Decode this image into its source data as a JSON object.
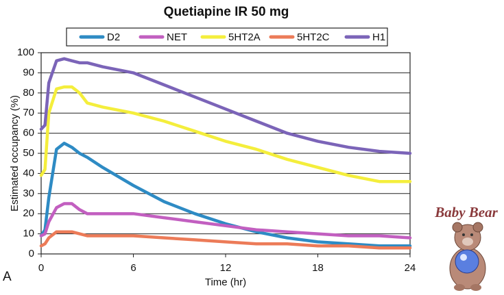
{
  "chart_data": {
    "type": "line",
    "title": "Quetiapine IR 50 mg",
    "x_label": "Time (hr)",
    "y_label": "Estimated occupancy (%)",
    "panel_label": "A",
    "badge": "Baby Bear",
    "x": [
      0,
      0.25,
      0.5,
      1,
      1.5,
      2,
      2.5,
      3,
      4,
      6,
      8,
      10,
      12,
      14,
      16,
      18,
      20,
      22,
      24
    ],
    "series": [
      {
        "name": "D2",
        "color": "#2e8bc4",
        "values": [
          9,
          12,
          28,
          52,
          55,
          53,
          50,
          48,
          43,
          34,
          26,
          20,
          15,
          11,
          8,
          6,
          5,
          4,
          4
        ]
      },
      {
        "name": "NET",
        "color": "#c25fc0",
        "values": [
          9,
          10,
          16,
          23,
          25,
          25,
          22,
          20,
          20,
          20,
          18,
          16,
          14,
          12,
          11,
          10,
          9,
          9,
          8
        ]
      },
      {
        "name": "5HT2A",
        "color": "#f4ee3c",
        "values": [
          39,
          42,
          70,
          82,
          83,
          83,
          80,
          75,
          73,
          70,
          66,
          61,
          56,
          52,
          47,
          43,
          39,
          36,
          36
        ]
      },
      {
        "name": "5HT2C",
        "color": "#ec7b58",
        "values": [
          4,
          5,
          8,
          11,
          11,
          11,
          10,
          9,
          9,
          9,
          8,
          7,
          6,
          5,
          5,
          4,
          4,
          3,
          3
        ]
      },
      {
        "name": "H1",
        "color": "#7b64b8",
        "values": [
          62,
          64,
          85,
          96,
          97,
          96,
          95,
          95,
          93,
          90,
          84,
          78,
          72,
          66,
          60,
          56,
          53,
          51,
          50
        ]
      }
    ],
    "xlim": [
      0,
      24
    ],
    "xticks": [
      0,
      6,
      12,
      18,
      24
    ],
    "ylim": [
      0,
      100
    ],
    "yticks": [
      0,
      10,
      20,
      30,
      40,
      50,
      60,
      70,
      80,
      90,
      100
    ],
    "grid": true,
    "legend": "top"
  }
}
